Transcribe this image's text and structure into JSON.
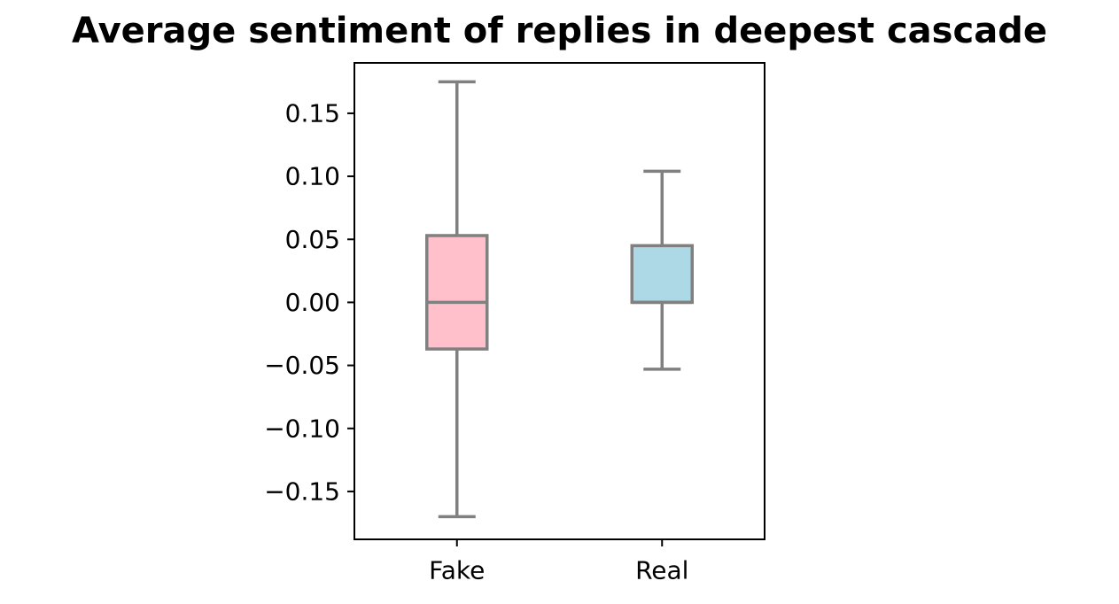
{
  "chart_data": {
    "type": "box",
    "title": "Average sentiment of replies in deepest cascade",
    "xlabel": "",
    "ylabel": "",
    "categories": [
      "Fake",
      "Real"
    ],
    "ylim": [
      -0.188,
      0.19
    ],
    "yticks": [
      -0.15,
      -0.1,
      -0.05,
      0.0,
      0.05,
      0.1,
      0.15
    ],
    "ytick_labels": [
      "−0.15",
      "−0.10",
      "−0.05",
      "0.00",
      "0.05",
      "0.10",
      "0.15"
    ],
    "grid": false,
    "boxes": [
      {
        "category": "Fake",
        "whisker_low": -0.17,
        "q1": -0.037,
        "median": 0.0,
        "q3": 0.053,
        "whisker_high": 0.175,
        "color": "#FFC0CB"
      },
      {
        "category": "Real",
        "whisker_low": -0.053,
        "q1": 0.0,
        "median": 0.0,
        "q3": 0.045,
        "whisker_high": 0.104,
        "color": "#ADD8E6"
      }
    ],
    "line_color": "#808080"
  }
}
